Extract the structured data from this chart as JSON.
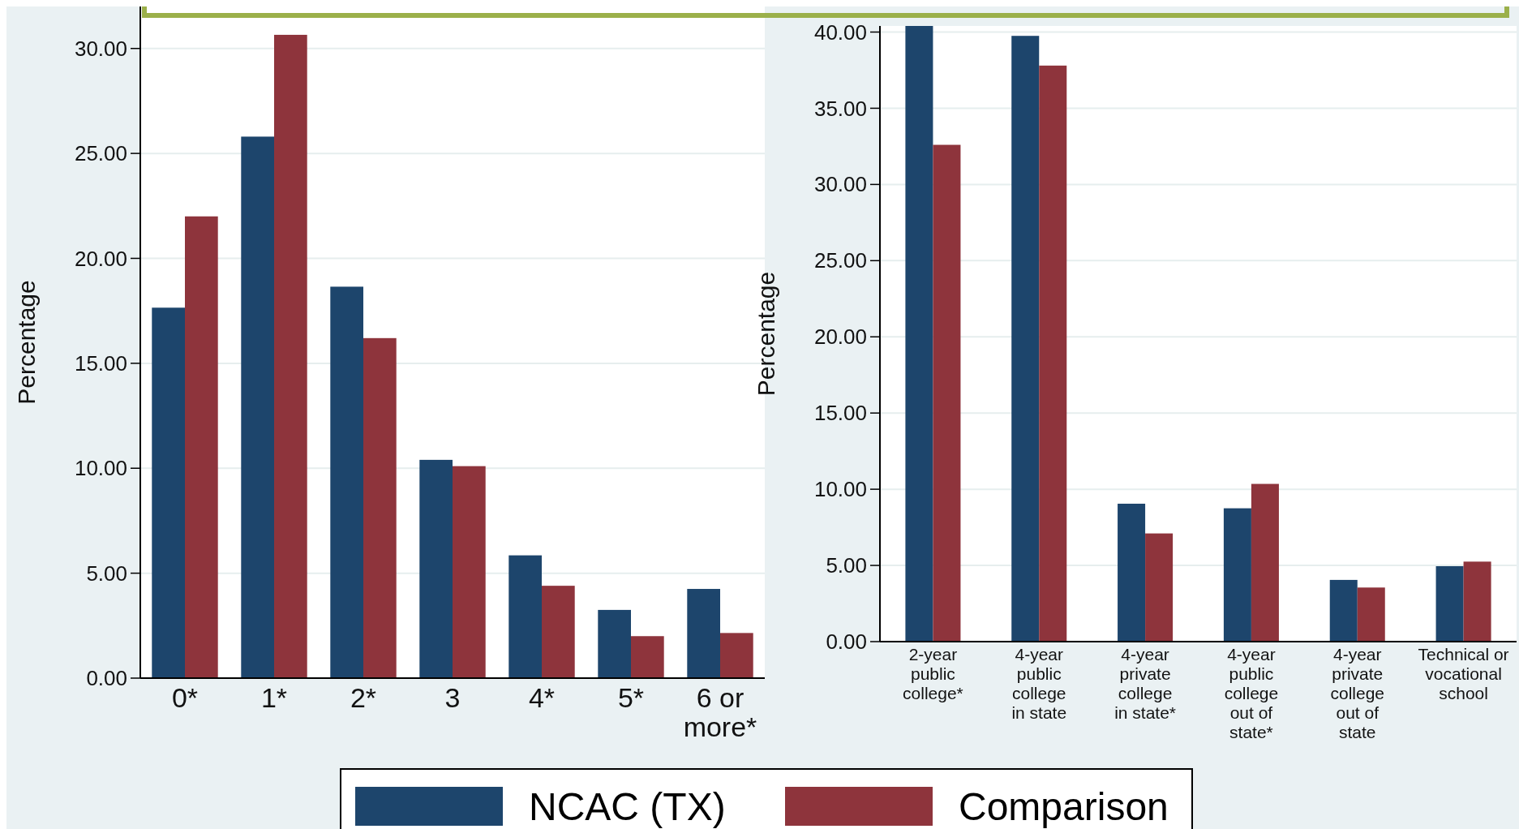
{
  "chart_data": [
    {
      "type": "bar",
      "ylabel": "Percentage",
      "categories": [
        "0*",
        "1*",
        "2*",
        "3",
        "4*",
        "5*",
        "6 or\nmore*"
      ],
      "series": [
        {
          "name": "NCAC (TX)",
          "color": "#1d456c",
          "values": [
            17.65,
            25.8,
            18.65,
            10.4,
            5.85,
            3.25,
            4.25
          ]
        },
        {
          "name": "Comparison",
          "color": "#8e343c",
          "values": [
            22.0,
            30.65,
            16.2,
            10.1,
            4.4,
            2.0,
            2.15
          ]
        }
      ],
      "ylim": [
        0,
        32
      ],
      "yticks": [
        {
          "value": 0,
          "label": "0.00"
        },
        {
          "value": 5,
          "label": "5.00"
        },
        {
          "value": 10,
          "label": "10.00"
        },
        {
          "value": 15,
          "label": "15.00"
        },
        {
          "value": 20,
          "label": "20.00"
        },
        {
          "value": 25,
          "label": "25.00"
        },
        {
          "value": 30,
          "label": "30.00"
        }
      ],
      "grid": "y",
      "legend": "bottom"
    },
    {
      "type": "bar",
      "ylabel": "Percentage",
      "categories": [
        "2-year\npublic\ncollege*",
        "4-year\npublic\ncollege\nin state",
        "4-year\nprivate\ncollege\nin state*",
        "4-year\npublic\ncollege\nout of\nstate*",
        "4-year\nprivate\ncollege\nout of\nstate",
        "Technical or\nvocational\nschool"
      ],
      "series": [
        {
          "name": "NCAC (TX)",
          "color": "#1d456c",
          "values": [
            40.4,
            39.75,
            9.05,
            8.75,
            4.05,
            4.95
          ]
        },
        {
          "name": "Comparison",
          "color": "#8e343c",
          "values": [
            32.6,
            37.8,
            7.1,
            10.35,
            3.55,
            5.25
          ]
        }
      ],
      "ylim": [
        0,
        40.4
      ],
      "yticks": [
        {
          "value": 0,
          "label": "0.00"
        },
        {
          "value": 5,
          "label": "5.00"
        },
        {
          "value": 10,
          "label": "10.00"
        },
        {
          "value": 15,
          "label": "15.00"
        },
        {
          "value": 20,
          "label": "20.00"
        },
        {
          "value": 25,
          "label": "25.00"
        },
        {
          "value": 30,
          "label": "30.00"
        },
        {
          "value": 35,
          "label": "35.00"
        },
        {
          "value": 40,
          "label": "40.00"
        }
      ],
      "grid": "y",
      "legend": "bottom"
    }
  ]
}
